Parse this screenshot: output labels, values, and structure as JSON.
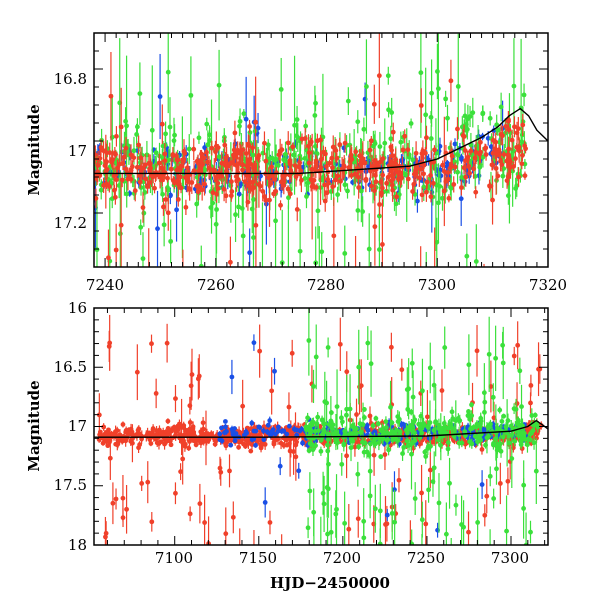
{
  "chart_data": [
    {
      "type": "scatter",
      "panel": "top",
      "title": "",
      "xlabel": "",
      "ylabel": "Magnitude",
      "xlim": [
        7238,
        7320
      ],
      "ylim": [
        17.35,
        16.7
      ],
      "y_inverted": true,
      "xticks": [
        7240,
        7260,
        7280,
        7300,
        7320
      ],
      "xtick_labels": [
        "7240",
        "7260",
        "7280",
        "7300",
        "7320"
      ],
      "yticks": [
        16.8,
        17,
        17.2
      ],
      "ytick_labels": [
        "16.8",
        "17",
        "17.2"
      ],
      "series": [
        {
          "name": "blue",
          "color": "#1a4fe6",
          "x_range": [
            7238,
            7312
          ],
          "baseline": 17.08,
          "scatter": 0.03,
          "outlier_frac": 0.04,
          "n": 260,
          "err": 0.015
        },
        {
          "name": "green",
          "color": "#3be03b",
          "x_range": [
            7238,
            7316
          ],
          "baseline": 17.06,
          "scatter": 0.06,
          "outlier_frac": 0.18,
          "n": 420,
          "err": 0.025
        },
        {
          "name": "red",
          "color": "#f0402a",
          "x_range": [
            7238,
            7316
          ],
          "baseline": 17.08,
          "scatter": 0.04,
          "outlier_frac": 0.07,
          "n": 520,
          "err": 0.02
        }
      ],
      "model_curve": {
        "color": "#000000",
        "x": [
          7238,
          7245,
          7255,
          7265,
          7275,
          7285,
          7295,
          7300,
          7304,
          7308,
          7311,
          7313,
          7315,
          7316.5,
          7318,
          7320
        ],
        "y": [
          17.09,
          17.09,
          17.09,
          17.09,
          17.09,
          17.08,
          17.07,
          17.05,
          17.02,
          16.99,
          16.96,
          16.93,
          16.91,
          16.93,
          16.97,
          17.0
        ]
      }
    },
    {
      "type": "scatter",
      "panel": "bottom",
      "title": "",
      "xlabel": "HJD−2450000",
      "ylabel": "Magnitude",
      "xlim": [
        7052,
        7322
      ],
      "ylim": [
        18,
        16
      ],
      "y_inverted": true,
      "xticks": [
        7100,
        7150,
        7200,
        7250,
        7300
      ],
      "xtick_labels": [
        "7100",
        "7150",
        "7200",
        "7250",
        "7300"
      ],
      "yticks": [
        16,
        16.5,
        17,
        17.5,
        18
      ],
      "ytick_labels": [
        "16",
        "16.5",
        "17",
        "17.5",
        "18"
      ],
      "series": [
        {
          "name": "red",
          "color": "#f0402a",
          "x_range": [
            7055,
            7318
          ],
          "baseline": 17.08,
          "scatter": 0.04,
          "outlier_frac": 0.12,
          "n": 900,
          "err": 0.03
        },
        {
          "name": "blue",
          "color": "#1a4fe6",
          "x_range": [
            7125,
            7312
          ],
          "baseline": 17.05,
          "scatter": 0.04,
          "outlier_frac": 0.05,
          "n": 240,
          "err": 0.02
        },
        {
          "name": "green",
          "color": "#3be03b",
          "x_range": [
            7178,
            7316
          ],
          "baseline": 17.05,
          "scatter": 0.08,
          "outlier_frac": 0.3,
          "n": 380,
          "err": 0.04
        }
      ],
      "model_curve": {
        "color": "#000000",
        "x": [
          7052,
          7150,
          7250,
          7300,
          7310,
          7315,
          7318,
          7322
        ],
        "y": [
          17.09,
          17.09,
          17.08,
          17.04,
          17.0,
          16.95,
          16.98,
          17.02
        ]
      }
    }
  ]
}
